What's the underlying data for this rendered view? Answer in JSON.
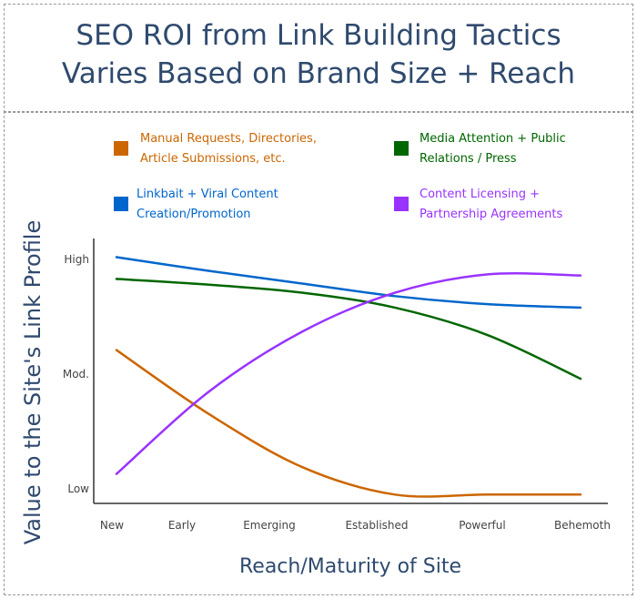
{
  "chart_data": {
    "type": "line",
    "title": "SEO ROI from Link Building Tactics Varies Based on Brand Size + Reach",
    "title_lines": [
      "SEO ROI from Link Building Tactics",
      "Varies Based on Brand Size + Reach"
    ],
    "xlabel": "Reach/Maturity of Site",
    "ylabel": "Value to the Site's Link Profile",
    "categories": [
      "New",
      "Early",
      "Emerging",
      "Established",
      "Powerful",
      "Behemoth"
    ],
    "y_ticks": [
      {
        "label": "Low",
        "value": 0
      },
      {
        "label": "Mod.",
        "value": 1
      },
      {
        "label": "High",
        "value": 2
      }
    ],
    "ylim": [
      -0.13,
      2.2
    ],
    "grid": false,
    "legend_placement": "top",
    "series": [
      {
        "name": "Manual Requests, Directories, Article Submissions, etc.",
        "legend_lines": [
          "Manual Requests, Directories,",
          "Article Submissions, etc."
        ],
        "color": "#cc6600",
        "values": [
          1.21,
          0.65,
          0.19,
          -0.05,
          -0.05,
          -0.05
        ]
      },
      {
        "name": "Media Attention + Public Relations / Press",
        "legend_lines": [
          "Media Attention + Public",
          "Relations / Press"
        ],
        "color": "#006600",
        "values": [
          1.83,
          1.78,
          1.71,
          1.58,
          1.34,
          0.96
        ]
      },
      {
        "name": "Linkbait + Viral Content Creation/Promotion",
        "legend_lines": [
          "Linkbait + Viral Content",
          "Creation/Promotion"
        ],
        "color": "#0066cc",
        "values": [
          2.02,
          1.9,
          1.79,
          1.68,
          1.61,
          1.58
        ]
      },
      {
        "name": "Content Licensing + Partnership Agreements",
        "legend_lines": [
          "Content Licensing +",
          "Partnership Agreements"
        ],
        "color": "#9933ff",
        "values": [
          0.13,
          0.85,
          1.37,
          1.71,
          1.87,
          1.86
        ]
      }
    ]
  }
}
